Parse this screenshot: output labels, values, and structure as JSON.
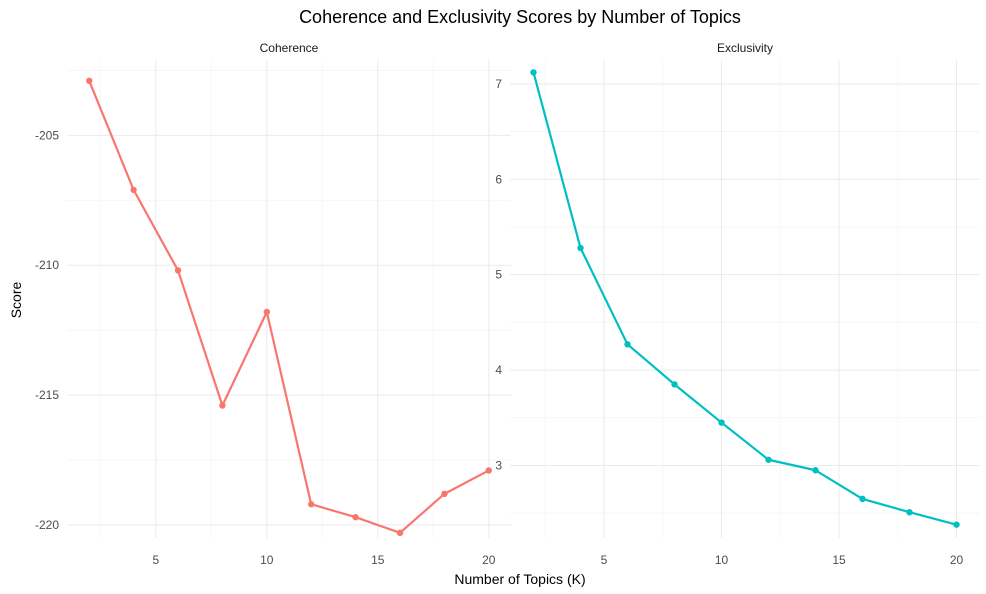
{
  "chart_data": {
    "type": "line",
    "title": "Coherence and Exclusivity Scores by Number of Topics",
    "xlabel": "Number of Topics (K)",
    "ylabel": "Score",
    "grid": true,
    "legend": "none",
    "x_ticks": [
      5,
      10,
      15,
      20
    ],
    "facets": [
      {
        "name": "Coherence",
        "color": "#F8766D",
        "xlim": [
          1,
          21
        ],
        "ylim": [
          -220.5,
          -202.1
        ],
        "y_ticks": [
          -205,
          -210,
          -215,
          -220
        ],
        "x": [
          2,
          4,
          6,
          8,
          10,
          12,
          14,
          16,
          18,
          20
        ],
        "values": [
          -202.9,
          -207.1,
          -210.2,
          -215.4,
          -211.8,
          -219.2,
          -219.7,
          -220.3,
          -218.8,
          -217.9
        ]
      },
      {
        "name": "Exclusivity",
        "color": "#00BFC4",
        "xlim": [
          1,
          21
        ],
        "ylim": [
          2.24,
          7.25
        ],
        "y_ticks": [
          3,
          4,
          5,
          6,
          7
        ],
        "x": [
          2,
          4,
          6,
          8,
          10,
          12,
          14,
          16,
          18,
          20
        ],
        "values": [
          7.12,
          5.28,
          4.27,
          3.85,
          3.45,
          3.06,
          2.95,
          2.65,
          2.51,
          2.38
        ]
      }
    ]
  }
}
